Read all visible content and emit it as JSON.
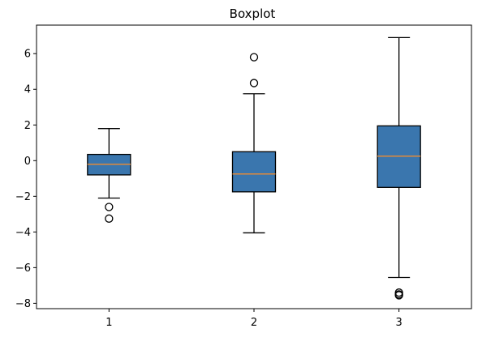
{
  "chart_data": {
    "type": "boxplot",
    "title": "Boxplot",
    "xlabel": "",
    "ylabel": "",
    "categories": [
      "1",
      "2",
      "3"
    ],
    "ylim": [
      -8.3,
      7.6
    ],
    "yticks": [
      -8,
      -6,
      -4,
      -2,
      0,
      2,
      4,
      6
    ],
    "grid": false,
    "box_color": "#3a76ae",
    "median_color": "#e08a3a",
    "boxes": [
      {
        "label": "1",
        "whisker_low": -2.1,
        "q1": -0.8,
        "median": -0.2,
        "q3": 0.35,
        "whisker_high": 1.8,
        "outliers": [
          -2.6,
          -3.25
        ]
      },
      {
        "label": "2",
        "whisker_low": -4.05,
        "q1": -1.75,
        "median": -0.75,
        "q3": 0.5,
        "whisker_high": 3.75,
        "outliers": [
          4.35,
          5.8
        ]
      },
      {
        "label": "3",
        "whisker_low": -6.55,
        "q1": -1.5,
        "median": 0.25,
        "q3": 1.95,
        "whisker_high": 6.9,
        "outliers": [
          -7.4,
          -7.5,
          -7.55
        ]
      }
    ]
  }
}
